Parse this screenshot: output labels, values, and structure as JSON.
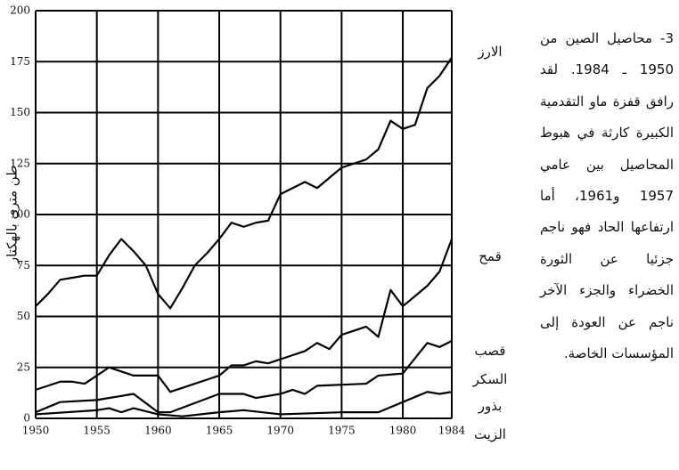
{
  "chart_data": {
    "type": "line",
    "y_label": "طن متري بالهكتار",
    "caption": "3- محاصيل الصين من 1950 ـ 1984. لقد رافق قفزة ماو التقدمية الكبيرة كارثة في هبوط المحاصيل بين عامي 1957 و1961، أما ارتفاعها الحاد فهو ناجم جزئيا عن الثورة الخضراء والجزء الآخر ناجم عن العودة إلى المؤسسات الخاصة.",
    "xlim": [
      1950,
      1984
    ],
    "xticks": [
      1950,
      1955,
      1960,
      1965,
      1970,
      1975,
      1980,
      1984
    ],
    "ylim": [
      0,
      200
    ],
    "yticks": [
      0,
      25,
      50,
      75,
      100,
      125,
      150,
      175,
      200
    ],
    "grid": true,
    "series": [
      {
        "name": "الارز",
        "color": "#000000",
        "x": [
          1950,
          1951,
          1952,
          1953,
          1954,
          1955,
          1956,
          1957,
          1958,
          1959,
          1960,
          1961,
          1962,
          1963,
          1964,
          1965,
          1966,
          1967,
          1968,
          1969,
          1970,
          1971,
          1972,
          1973,
          1974,
          1975,
          1976,
          1977,
          1978,
          1979,
          1980,
          1981,
          1982,
          1983,
          1984
        ],
        "values": [
          55,
          61,
          68,
          69,
          70,
          70,
          80,
          88,
          82,
          75,
          61,
          54,
          64,
          75,
          81,
          88,
          96,
          94,
          96,
          97,
          110,
          113,
          116,
          113,
          118,
          123,
          125,
          127,
          132,
          146,
          142,
          144,
          162,
          168,
          177
        ]
      },
      {
        "name": "قمح",
        "color": "#000000",
        "x": [
          1950,
          1951,
          1952,
          1953,
          1954,
          1955,
          1956,
          1957,
          1958,
          1959,
          1960,
          1961,
          1962,
          1963,
          1964,
          1965,
          1966,
          1967,
          1968,
          1969,
          1970,
          1971,
          1972,
          1973,
          1974,
          1975,
          1976,
          1977,
          1978,
          1979,
          1980,
          1981,
          1982,
          1983,
          1984
        ],
        "values": [
          14,
          16,
          18,
          18,
          17,
          21,
          25,
          23,
          21,
          21,
          21,
          13,
          15,
          17,
          19,
          21,
          26,
          26,
          28,
          27,
          29,
          31,
          33,
          37,
          34,
          41,
          43,
          45,
          40,
          63,
          55,
          60,
          65,
          72,
          88
        ]
      },
      {
        "name": "قصب السكر",
        "color": "#000000",
        "x": [
          1950,
          1952,
          1955,
          1958,
          1960,
          1961,
          1965,
          1967,
          1968,
          1970,
          1971,
          1972,
          1973,
          1977,
          1978,
          1980,
          1982,
          1983,
          1984
        ],
        "values": [
          3,
          8,
          9,
          12,
          3,
          3,
          12,
          12,
          10,
          12,
          14,
          12,
          16,
          17,
          21,
          22,
          37,
          35,
          38
        ]
      },
      {
        "name": "بذور الزيت",
        "color": "#000000",
        "x": [
          1950,
          1955,
          1956,
          1957,
          1958,
          1960,
          1962,
          1965,
          1967,
          1970,
          1975,
          1978,
          1980,
          1982,
          1983,
          1984
        ],
        "values": [
          2,
          4,
          5,
          3,
          5,
          2,
          1,
          3,
          4,
          2,
          3,
          3,
          8,
          13,
          12,
          13
        ]
      }
    ]
  }
}
